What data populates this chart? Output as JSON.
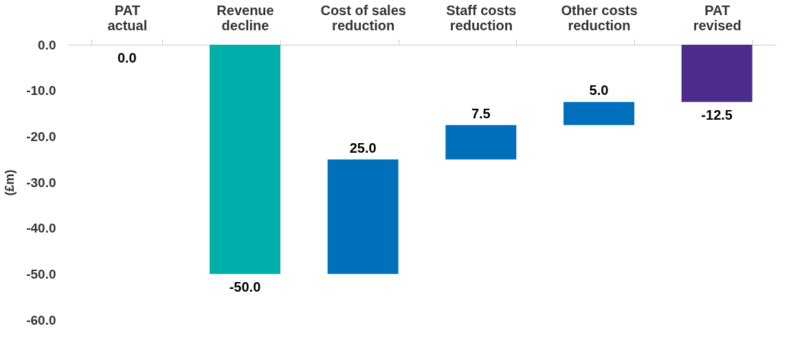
{
  "chart_data": {
    "type": "bar",
    "categories": [
      "PAT\nactual",
      "Revenue\ndecline",
      "Cost of sales\nreduction",
      "Staff costs\nreduction",
      "Other costs\nreduction",
      "PAT\nrevised"
    ],
    "values": [
      0.0,
      -50.0,
      25.0,
      7.5,
      5.0,
      -12.5
    ],
    "base": [
      null,
      0,
      -50.0,
      -25.0,
      -17.5,
      0
    ],
    "colors": [
      "#00afaa",
      "#00afaa",
      "#0070bd",
      "#0070bd",
      "#0070bd",
      "#4c2c8a"
    ],
    "value_labels": [
      "0.0",
      "-50.0",
      "25.0",
      "7.5",
      "5.0",
      "-12.5"
    ],
    "ylabel": "(£m)",
    "ylim": [
      -60,
      0
    ],
    "yticks": [
      {
        "value": 0,
        "label": "0.0"
      },
      {
        "value": -10,
        "label": "-10.0"
      },
      {
        "value": -20,
        "label": "-20.0"
      },
      {
        "value": -30,
        "label": "-30.0"
      },
      {
        "value": -40,
        "label": "-40.0"
      },
      {
        "value": -50,
        "label": "-50.0"
      },
      {
        "value": -60,
        "label": "-60.0"
      }
    ],
    "grid": false
  }
}
